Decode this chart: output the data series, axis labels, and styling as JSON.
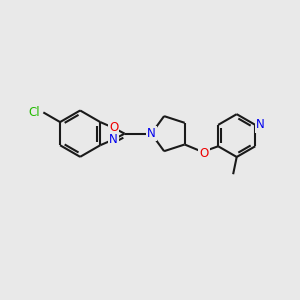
{
  "background_color": "#e9e9e9",
  "bond_color": "#1a1a1a",
  "atom_colors": {
    "N": "#0000ee",
    "O": "#ee0000",
    "Cl": "#22bb00"
  },
  "bond_width": 1.5,
  "font_size": 8.5,
  "fig_size": [
    3.0,
    3.0
  ],
  "dpi": 100
}
